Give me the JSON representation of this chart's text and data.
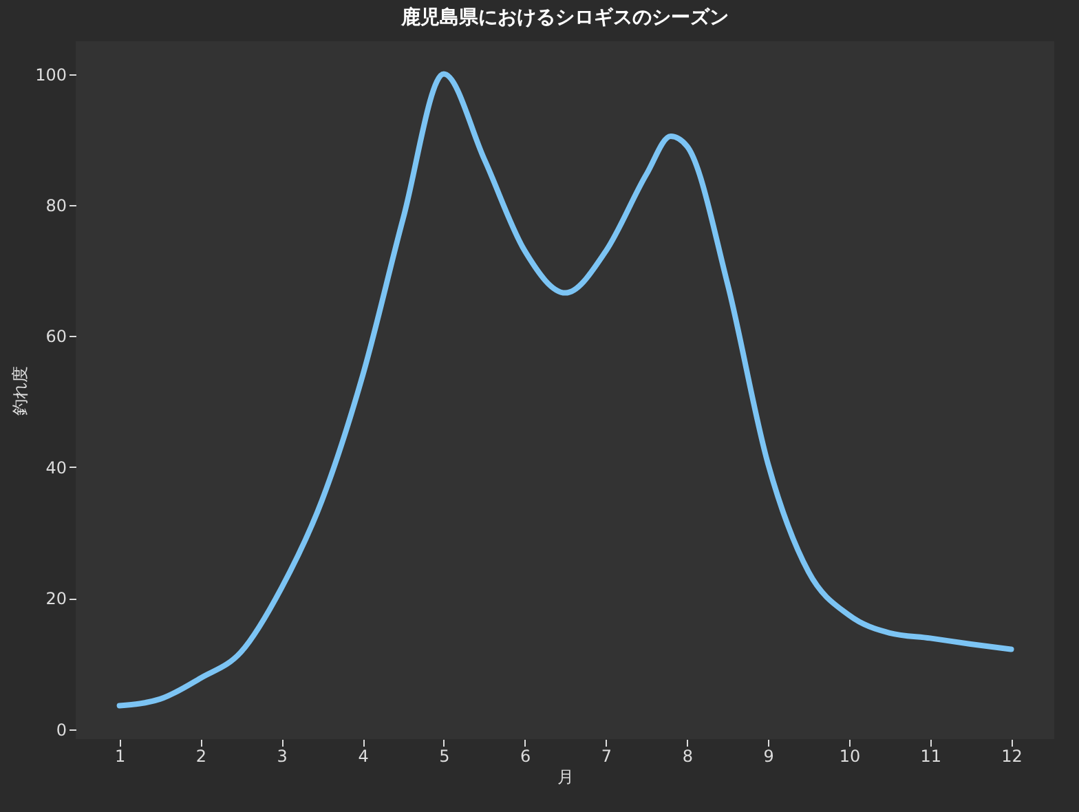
{
  "chart_data": {
    "type": "line",
    "title": "鹿児島県におけるシロギスのシーズン",
    "xlabel": "月",
    "ylabel": "釣れ度",
    "x": [
      1,
      1.5,
      2,
      2.5,
      3,
      3.5,
      4,
      4.5,
      5,
      5.5,
      6,
      6.5,
      7,
      7.5,
      7.8,
      8,
      8.5,
      9,
      9.5,
      10,
      10.5,
      11,
      11.5,
      12
    ],
    "series": [
      {
        "color": "#7cc4f4",
        "values": [
          3.6,
          4.6,
          7.8,
          11.8,
          21.6,
          35,
          54,
          78,
          100,
          87,
          73,
          66.6,
          73,
          84.7,
          90.5,
          89,
          68,
          40.5,
          24,
          17.4,
          14.7,
          13.9,
          13,
          12.2
        ]
      }
    ],
    "xlim": [
      0.46,
      12.53
    ],
    "ylim": [
      -1.5,
      105
    ],
    "xticks": [
      1,
      2,
      3,
      4,
      5,
      6,
      7,
      8,
      9,
      10,
      11,
      12
    ],
    "yticks": [
      0,
      20,
      40,
      60,
      80,
      100
    ],
    "grid": false,
    "legend": false,
    "marker": "none",
    "line_style": "solid"
  }
}
